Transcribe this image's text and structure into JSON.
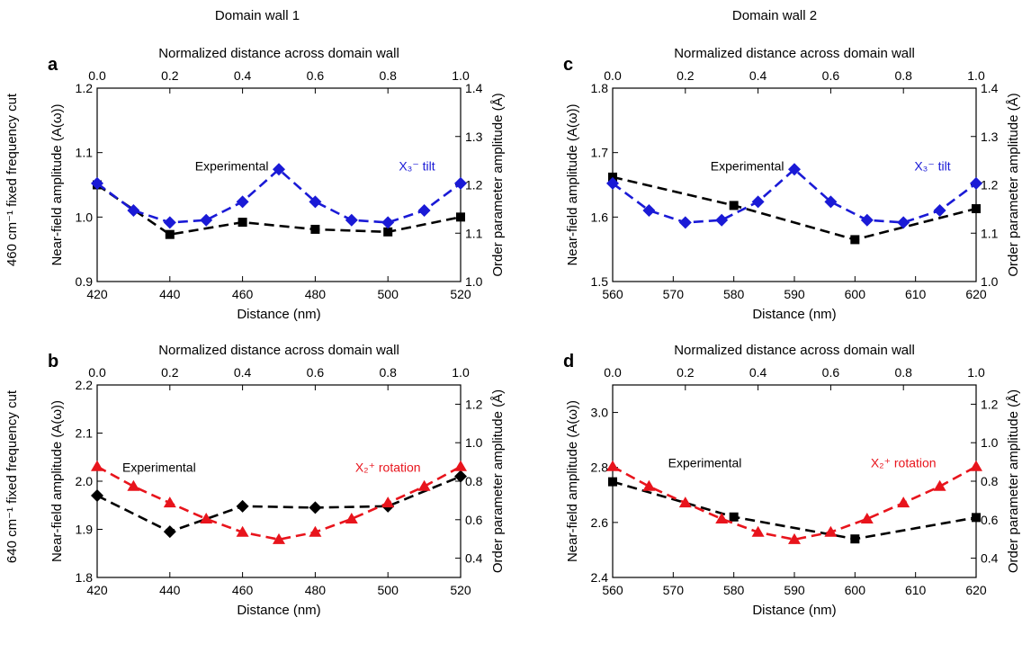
{
  "column_titles": [
    "Domain wall 1",
    "Domain wall 2"
  ],
  "row_labels": [
    "460 cm⁻¹ fixed frequency cut",
    "640 cm⁻¹ fixed frequency cut"
  ],
  "colors": {
    "experimental": "#000000",
    "tilt": "#1a1ad6",
    "rotation": "#e8141c"
  },
  "chart_data": [
    {
      "type": "line",
      "panel_label": "a",
      "xlabel": "Distance (nm)",
      "xlim": [
        420,
        520
      ],
      "xticks": [
        420,
        440,
        460,
        480,
        500,
        520
      ],
      "ylabel": "Near-field amplitude (A(ω))",
      "ylim": [
        0.9,
        1.2
      ],
      "yticks": [
        "0.9",
        "1.0",
        "1.1",
        "1.2"
      ],
      "x2label": "Normalized distance across domain wall",
      "x2lim": [
        0,
        1
      ],
      "x2ticks": [
        "0.0",
        "0.2",
        "0.4",
        "0.6",
        "0.8",
        "1.0"
      ],
      "y2label": "Order parameter amplitude (Å)",
      "y2lim": [
        1.0,
        1.4
      ],
      "y2ticks": [
        "1.0",
        "1.1",
        "1.2",
        "1.3",
        "1.4"
      ],
      "series": [
        {
          "name": "Experimental",
          "axis": "left",
          "color": "#000000",
          "marker": "square",
          "x": [
            420,
            440,
            460,
            480,
            500,
            520
          ],
          "y": [
            1.05,
            0.973,
            0.992,
            0.981,
            0.977,
            1.0
          ]
        },
        {
          "name": "X₃⁻ tilt",
          "axis": "right",
          "color": "#1a1ad6",
          "marker": "diamond",
          "x": [
            0.0,
            0.1,
            0.2,
            0.3,
            0.4,
            0.5,
            0.6,
            0.7,
            0.8,
            0.9,
            1.0
          ],
          "y": [
            1.203,
            1.147,
            1.122,
            1.127,
            1.165,
            1.232,
            1.165,
            1.127,
            1.122,
            1.147,
            1.203
          ]
        }
      ],
      "annotations": [
        {
          "text": "Experimental",
          "color": "#000000",
          "x": 0.2,
          "y": 1.23,
          "axis": "right"
        },
        {
          "text": "X₃⁻ tilt",
          "color": "#1a1ad6",
          "x": 0.88,
          "y": 1.23,
          "axis": "right"
        }
      ]
    },
    {
      "type": "line",
      "panel_label": "b",
      "xlabel": "Distance (nm)",
      "xlim": [
        420,
        520
      ],
      "xticks": [
        420,
        440,
        460,
        480,
        500,
        520
      ],
      "ylabel": "Near-field amplitude (A(ω))",
      "ylim": [
        1.8,
        2.2
      ],
      "yticks": [
        "1.8",
        "1.9",
        "2.0",
        "2.1",
        "2.2"
      ],
      "x2label": "Normalized distance across domain wall",
      "x2lim": [
        0,
        1
      ],
      "x2ticks": [
        "0.0",
        "0.2",
        "0.4",
        "0.6",
        "0.8",
        "1.0"
      ],
      "y2label": "Order parameter amplitude (Å)",
      "y2lim": [
        0.3,
        1.3
      ],
      "y2ticks": [
        "0.4",
        "0.6",
        "0.8",
        "1.0",
        "1.2"
      ],
      "series": [
        {
          "name": "Experimental",
          "axis": "left",
          "color": "#000000",
          "marker": "diamond",
          "x": [
            420,
            440,
            460,
            480,
            500,
            520
          ],
          "y": [
            1.97,
            1.895,
            1.948,
            1.945,
            1.948,
            2.01
          ]
        },
        {
          "name": "X₂⁺ rotation",
          "axis": "right",
          "color": "#e8141c",
          "marker": "triangle",
          "x": [
            0.0,
            0.1,
            0.2,
            0.3,
            0.4,
            0.5,
            0.6,
            0.7,
            0.8,
            0.9,
            1.0
          ],
          "y": [
            0.876,
            0.773,
            0.687,
            0.604,
            0.535,
            0.497,
            0.535,
            0.604,
            0.687,
            0.773,
            0.876
          ]
        }
      ],
      "annotations": [
        {
          "text": "Experimental",
          "color": "#000000",
          "x": 420,
          "y": 2.02,
          "axis": "left"
        },
        {
          "text": "X₂⁺ rotation",
          "color": "#e8141c",
          "x": 0.8,
          "y": 2.02,
          "axis": "left"
        }
      ]
    },
    {
      "type": "line",
      "panel_label": "c",
      "xlabel": "Distance (nm)",
      "xlim": [
        560,
        620
      ],
      "xticks": [
        560,
        570,
        580,
        590,
        600,
        610,
        620
      ],
      "ylabel": "Near-field amplitude (A(ω))",
      "ylim": [
        1.5,
        1.8
      ],
      "yticks": [
        "1.5",
        "1.6",
        "1.7",
        "1.8"
      ],
      "x2label": "Normalized distance across domain wall",
      "x2lim": [
        0,
        1
      ],
      "x2ticks": [
        "0.0",
        "0.2",
        "0.4",
        "0.6",
        "0.8",
        "1.0"
      ],
      "y2label": "Order parameter amplitude (Å)",
      "y2lim": [
        1.0,
        1.4
      ],
      "y2ticks": [
        "1.0",
        "1.1",
        "1.2",
        "1.3",
        "1.4"
      ],
      "series": [
        {
          "name": "Experimental",
          "axis": "left",
          "color": "#000000",
          "marker": "square",
          "x": [
            560,
            580,
            600,
            620
          ],
          "y": [
            1.662,
            1.618,
            1.565,
            1.613
          ]
        },
        {
          "name": "X₃⁻ tilt",
          "axis": "right",
          "color": "#1a1ad6",
          "marker": "diamond",
          "x": [
            0.0,
            0.1,
            0.2,
            0.3,
            0.4,
            0.5,
            0.6,
            0.7,
            0.8,
            0.9,
            1.0
          ],
          "y": [
            1.203,
            1.147,
            1.122,
            1.127,
            1.165,
            1.232,
            1.165,
            1.127,
            1.122,
            1.147,
            1.203
          ]
        }
      ],
      "annotations": [
        {
          "text": "Experimental",
          "color": "#000000",
          "x": 0.2,
          "y": 1.23,
          "axis": "right"
        },
        {
          "text": "X₃⁻ tilt",
          "color": "#1a1ad6",
          "x": 0.88,
          "y": 1.23,
          "axis": "right"
        }
      ]
    },
    {
      "type": "line",
      "panel_label": "d",
      "xlabel": "Distance (nm)",
      "xlim": [
        560,
        620
      ],
      "xticks": [
        560,
        570,
        580,
        590,
        600,
        610,
        620
      ],
      "ylabel": "Near-field amplitude (A(ω))",
      "ylim": [
        2.4,
        3.1
      ],
      "yticks": [
        "2.4",
        "2.6",
        "2.8",
        "3.0"
      ],
      "x2label": "Normalized distance across domain wall",
      "x2lim": [
        0,
        1
      ],
      "x2ticks": [
        "0.0",
        "0.2",
        "0.4",
        "0.6",
        "0.8",
        "1.0"
      ],
      "y2label": "Order parameter amplitude (Å)",
      "y2lim": [
        0.3,
        1.3
      ],
      "y2ticks": [
        "0.4",
        "0.6",
        "0.8",
        "1.0",
        "1.2"
      ],
      "series": [
        {
          "name": "Experimental",
          "axis": "left",
          "color": "#000000",
          "marker": "square",
          "x": [
            560,
            580,
            600,
            620
          ],
          "y": [
            2.748,
            2.62,
            2.54,
            2.618
          ]
        },
        {
          "name": "X₂⁺ rotation",
          "axis": "right",
          "color": "#e8141c",
          "marker": "triangle",
          "x": [
            0.0,
            0.1,
            0.2,
            0.3,
            0.4,
            0.5,
            0.6,
            0.7,
            0.8,
            0.9,
            1.0
          ],
          "y": [
            0.876,
            0.773,
            0.687,
            0.604,
            0.535,
            0.497,
            0.535,
            0.604,
            0.687,
            0.773,
            0.876
          ]
        }
      ],
      "annotations": [
        {
          "text": "Experimental",
          "color": "#000000",
          "x": 565,
          "y": 2.8,
          "axis": "left"
        },
        {
          "text": "X₂⁺ rotation",
          "color": "#e8141c",
          "x": 0.8,
          "y": 2.8,
          "axis": "left"
        }
      ]
    }
  ]
}
